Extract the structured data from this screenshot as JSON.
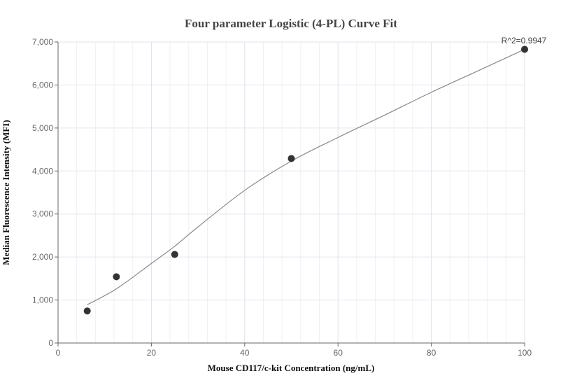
{
  "chart_data": {
    "type": "scatter",
    "title": "Four parameter Logistic (4-PL) Curve Fit",
    "xlabel": "Mouse CD117/c-kit Concentration (ng/mL)",
    "ylabel": "Median Fluorescence Intensity (MFI)",
    "xlim": [
      0,
      100
    ],
    "ylim": [
      0,
      7000
    ],
    "x_ticks": [
      "0",
      "20",
      "40",
      "60",
      "80",
      "100"
    ],
    "y_ticks": [
      "0",
      "1,000",
      "2,000",
      "3,000",
      "4,000",
      "5,000",
      "6,000",
      "7,000"
    ],
    "grid": true,
    "annotation": "R^2=0.9947",
    "points": {
      "x": [
        6.25,
        12.5,
        25,
        50,
        100
      ],
      "y": [
        745,
        1540,
        2060,
        4290,
        6830
      ]
    },
    "fit_curve": {
      "x": [
        6.25,
        12.5,
        20,
        25,
        30,
        40,
        50,
        60,
        70,
        80,
        90,
        100
      ],
      "y": [
        890,
        1260,
        1850,
        2250,
        2700,
        3550,
        4230,
        4780,
        5300,
        5830,
        6330,
        6830
      ]
    },
    "colors": {
      "points": "#333333",
      "curve": "#888888",
      "grid": "#e3e6f0"
    }
  }
}
